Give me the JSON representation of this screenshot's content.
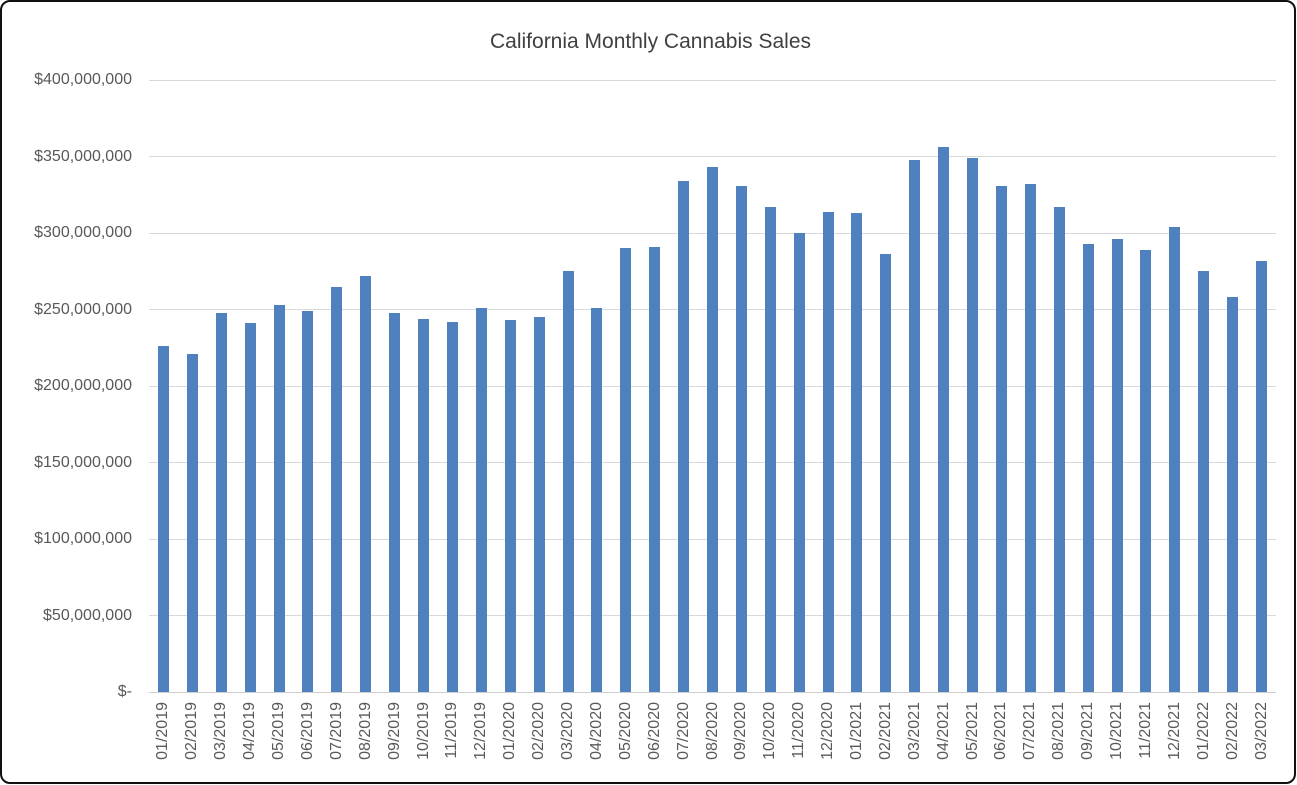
{
  "chart_data": {
    "type": "bar",
    "title": "California Monthly Cannabis Sales",
    "categories": [
      "01/2019",
      "02/2019",
      "03/2019",
      "04/2019",
      "05/2019",
      "06/2019",
      "07/2019",
      "08/2019",
      "09/2019",
      "10/2019",
      "11/2019",
      "12/2019",
      "01/2020",
      "02/2020",
      "03/2020",
      "04/2020",
      "05/2020",
      "06/2020",
      "07/2020",
      "08/2020",
      "09/2020",
      "10/2020",
      "11/2020",
      "12/2020",
      "01/2021",
      "02/2021",
      "03/2021",
      "04/2021",
      "05/2021",
      "06/2021",
      "07/2021",
      "08/2021",
      "09/2021",
      "10/2021",
      "11/2021",
      "12/2021",
      "01/2022",
      "02/2022",
      "03/2022"
    ],
    "values": [
      226000000,
      221000000,
      248000000,
      241000000,
      253000000,
      249000000,
      265000000,
      272000000,
      248000000,
      244000000,
      242000000,
      251000000,
      243000000,
      245000000,
      275000000,
      251000000,
      290000000,
      291000000,
      334000000,
      343000000,
      331000000,
      317000000,
      300000000,
      314000000,
      313000000,
      286000000,
      348000000,
      356000000,
      349000000,
      331000000,
      332000000,
      317000000,
      293000000,
      296000000,
      289000000,
      304000000,
      275000000,
      258000000,
      282000000
    ],
    "xlabel": "",
    "ylabel": "",
    "ylim": [
      0,
      400000000
    ],
    "y_tick_interval": 50000000,
    "y_tick_labels": [
      "$-",
      "$50,000,000",
      "$100,000,000",
      "$150,000,000",
      "$200,000,000",
      "$250,000,000",
      "$300,000,000",
      "$350,000,000",
      "$400,000,000"
    ],
    "x_tick_rotation_degrees": -90,
    "grid": "horizontal",
    "legend": "none",
    "colors": {
      "bar": "#4e81bd",
      "gridline": "#d9d9d9",
      "axis_line": "#cfcfcf",
      "title_text": "#404040",
      "axis_label_text": "#595959",
      "background": "#ffffff",
      "frame_border": "#101010"
    }
  }
}
